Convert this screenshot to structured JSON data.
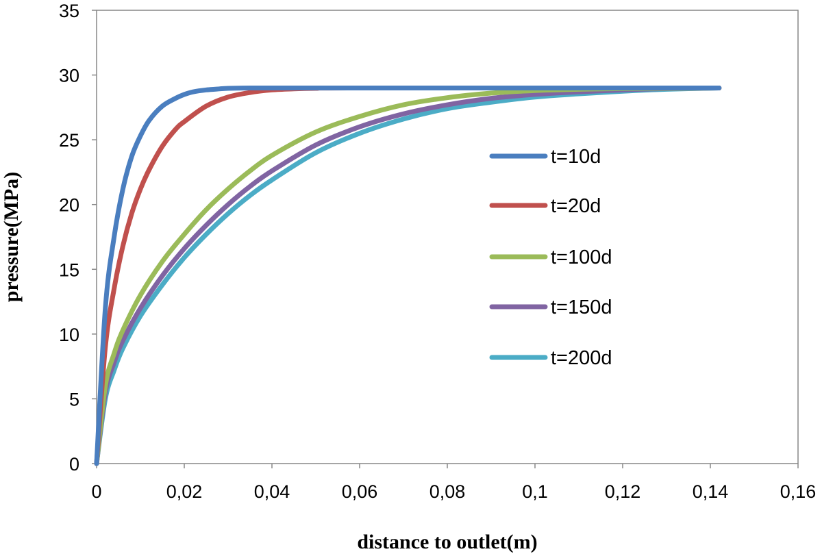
{
  "chart_data": {
    "type": "line",
    "xlabel": "distance to outlet(m)",
    "ylabel": "pressure(MPa)",
    "xlim": [
      0,
      0.16
    ],
    "ylim": [
      0,
      35
    ],
    "x_ticks": [
      0,
      0.02,
      0.04,
      0.06,
      0.08,
      0.1,
      0.12,
      0.14,
      0.16
    ],
    "x_tick_labels": [
      "0",
      "0,02",
      "0,04",
      "0,06",
      "0,08",
      "0,1",
      "0,12",
      "0,14",
      "0,16"
    ],
    "y_ticks": [
      0,
      5,
      10,
      15,
      20,
      25,
      30,
      35
    ],
    "y_tick_labels": [
      "0",
      "5",
      "10",
      "15",
      "20",
      "25",
      "30",
      "35"
    ],
    "grid": false,
    "legend_position": "right",
    "series": [
      {
        "name": "t=10d",
        "color": "#4a7ebf",
        "x": [
          0,
          0.002,
          0.004,
          0.006,
          0.008,
          0.01,
          0.012,
          0.015,
          0.018,
          0.02,
          0.022,
          0.025,
          0.028,
          0.03,
          0.035,
          0.04,
          0.05,
          0.142
        ],
        "y": [
          0,
          12.0,
          17.5,
          21.2,
          23.7,
          25.3,
          26.5,
          27.6,
          28.2,
          28.5,
          28.7,
          28.85,
          28.93,
          28.97,
          29.0,
          29.0,
          29.0,
          29.0
        ]
      },
      {
        "name": "t=20d",
        "color": "#c0504d",
        "x": [
          0,
          0.002,
          0.004,
          0.006,
          0.008,
          0.01,
          0.012,
          0.015,
          0.018,
          0.02,
          0.025,
          0.03,
          0.035,
          0.04,
          0.045,
          0.05,
          0.06,
          0.142
        ],
        "y": [
          0,
          9.0,
          13.5,
          16.8,
          19.3,
          21.2,
          22.7,
          24.5,
          25.8,
          26.4,
          27.6,
          28.3,
          28.65,
          28.85,
          28.93,
          28.97,
          29.0,
          29.0
        ]
      },
      {
        "name": "t=100d",
        "color": "#9bbb59",
        "x": [
          0,
          0.002,
          0.004,
          0.006,
          0.01,
          0.015,
          0.02,
          0.025,
          0.03,
          0.035,
          0.04,
          0.05,
          0.06,
          0.07,
          0.08,
          0.09,
          0.1,
          0.11,
          0.12,
          0.142
        ],
        "y": [
          0,
          6.0,
          8.5,
          10.3,
          13.0,
          15.6,
          17.7,
          19.6,
          21.2,
          22.6,
          23.8,
          25.6,
          26.8,
          27.7,
          28.25,
          28.6,
          28.8,
          28.9,
          28.95,
          29.0
        ]
      },
      {
        "name": "t=150d",
        "color": "#8064a2",
        "x": [
          0,
          0.002,
          0.004,
          0.006,
          0.01,
          0.015,
          0.02,
          0.025,
          0.03,
          0.035,
          0.04,
          0.05,
          0.06,
          0.07,
          0.08,
          0.09,
          0.1,
          0.11,
          0.12,
          0.13,
          0.142
        ],
        "y": [
          0,
          5.5,
          7.8,
          9.5,
          12.0,
          14.5,
          16.6,
          18.4,
          20.0,
          21.4,
          22.6,
          24.6,
          26.0,
          27.0,
          27.7,
          28.2,
          28.5,
          28.7,
          28.85,
          28.95,
          29.0
        ]
      },
      {
        "name": "t=200d",
        "color": "#4bacc6",
        "x": [
          0,
          0.002,
          0.004,
          0.006,
          0.01,
          0.015,
          0.02,
          0.025,
          0.03,
          0.035,
          0.04,
          0.05,
          0.06,
          0.07,
          0.08,
          0.09,
          0.1,
          0.11,
          0.12,
          0.13,
          0.142
        ],
        "y": [
          0,
          5.0,
          7.2,
          8.9,
          11.4,
          13.8,
          15.9,
          17.7,
          19.3,
          20.7,
          21.9,
          24.0,
          25.5,
          26.6,
          27.4,
          27.9,
          28.3,
          28.55,
          28.75,
          28.9,
          29.0
        ]
      }
    ]
  }
}
